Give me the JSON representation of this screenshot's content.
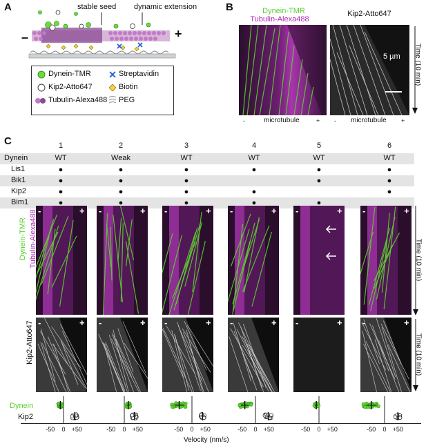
{
  "panels": {
    "a": "A",
    "b": "B",
    "c": "C"
  },
  "a": {
    "stable_seed": "stable seed",
    "dynamic_extension": "dynamic extension",
    "minus": "–",
    "plus": "+",
    "legend": [
      {
        "label": "Dynein-TMR",
        "icon": "green-circle"
      },
      {
        "label": "Streptavidin",
        "icon": "blue-x"
      },
      {
        "label": "Kip2-Atto647",
        "icon": "white-circle"
      },
      {
        "label": "Biotin",
        "icon": "yellow-diamond"
      },
      {
        "label": "Tubulin-Alexa488",
        "icon": "magenta-dimer"
      },
      {
        "label": "PEG",
        "icon": "peg-squiggle"
      }
    ]
  },
  "b": {
    "left_title_1": "Dynein-TMR",
    "left_title_2": "Tubulin-Alexa488",
    "right_title": "Kip2-Atto647",
    "scale": "5 µm",
    "time": "Time (10 min)",
    "minus": "-",
    "microtubule": "microtubule",
    "plus": "+",
    "colors": {
      "dynein": "#5ad22d",
      "tubulin": "#b02cb6"
    }
  },
  "c": {
    "columns": [
      "1",
      "2",
      "3",
      "4",
      "5",
      "6"
    ],
    "rows": [
      {
        "label": "Dynein",
        "values": [
          "WT",
          "Weak",
          "WT",
          "WT",
          "WT",
          "WT"
        ]
      },
      {
        "label": "Lis1",
        "values": [
          "●",
          "●",
          "●",
          "●",
          "●",
          "●"
        ]
      },
      {
        "label": "Bik1",
        "values": [
          "●",
          "●",
          "●",
          "",
          "●",
          "●"
        ]
      },
      {
        "label": "Kip2",
        "values": [
          "●",
          "●",
          "●",
          "●",
          "",
          "●"
        ]
      },
      {
        "label": "Bim1",
        "values": [
          "●",
          "●",
          "●",
          "●",
          "●",
          ""
        ]
      }
    ],
    "row_label_top_1": "Dynein-TMR",
    "row_label_top_2": "Tubulin-Alexa488",
    "row_label_bottom": "Kip2-Atto647",
    "time": "Time (10 min)",
    "minus": "-",
    "plus": "+",
    "dynein_label": "Dynein",
    "kip2_label": "Kip2",
    "tick_labels": [
      "-50",
      "0",
      "+50"
    ],
    "xlabel": "Velocity (nm/s)"
  },
  "chart_data": {
    "type": "scatter",
    "xlabel": "Velocity (nm/s)",
    "xlim": [
      -100,
      100
    ],
    "series": [
      {
        "name": "Dynein",
        "color": "#5ad22d",
        "means": [
          -12,
          15,
          -48,
          -40,
          -10,
          -50
        ],
        "spread": [
          8,
          8,
          28,
          24,
          8,
          30
        ]
      },
      {
        "name": "Kip2",
        "color": "#111111",
        "means": [
          42,
          38,
          40,
          48,
          null,
          50
        ],
        "spread": [
          10,
          10,
          8,
          14,
          null,
          10
        ]
      }
    ]
  }
}
